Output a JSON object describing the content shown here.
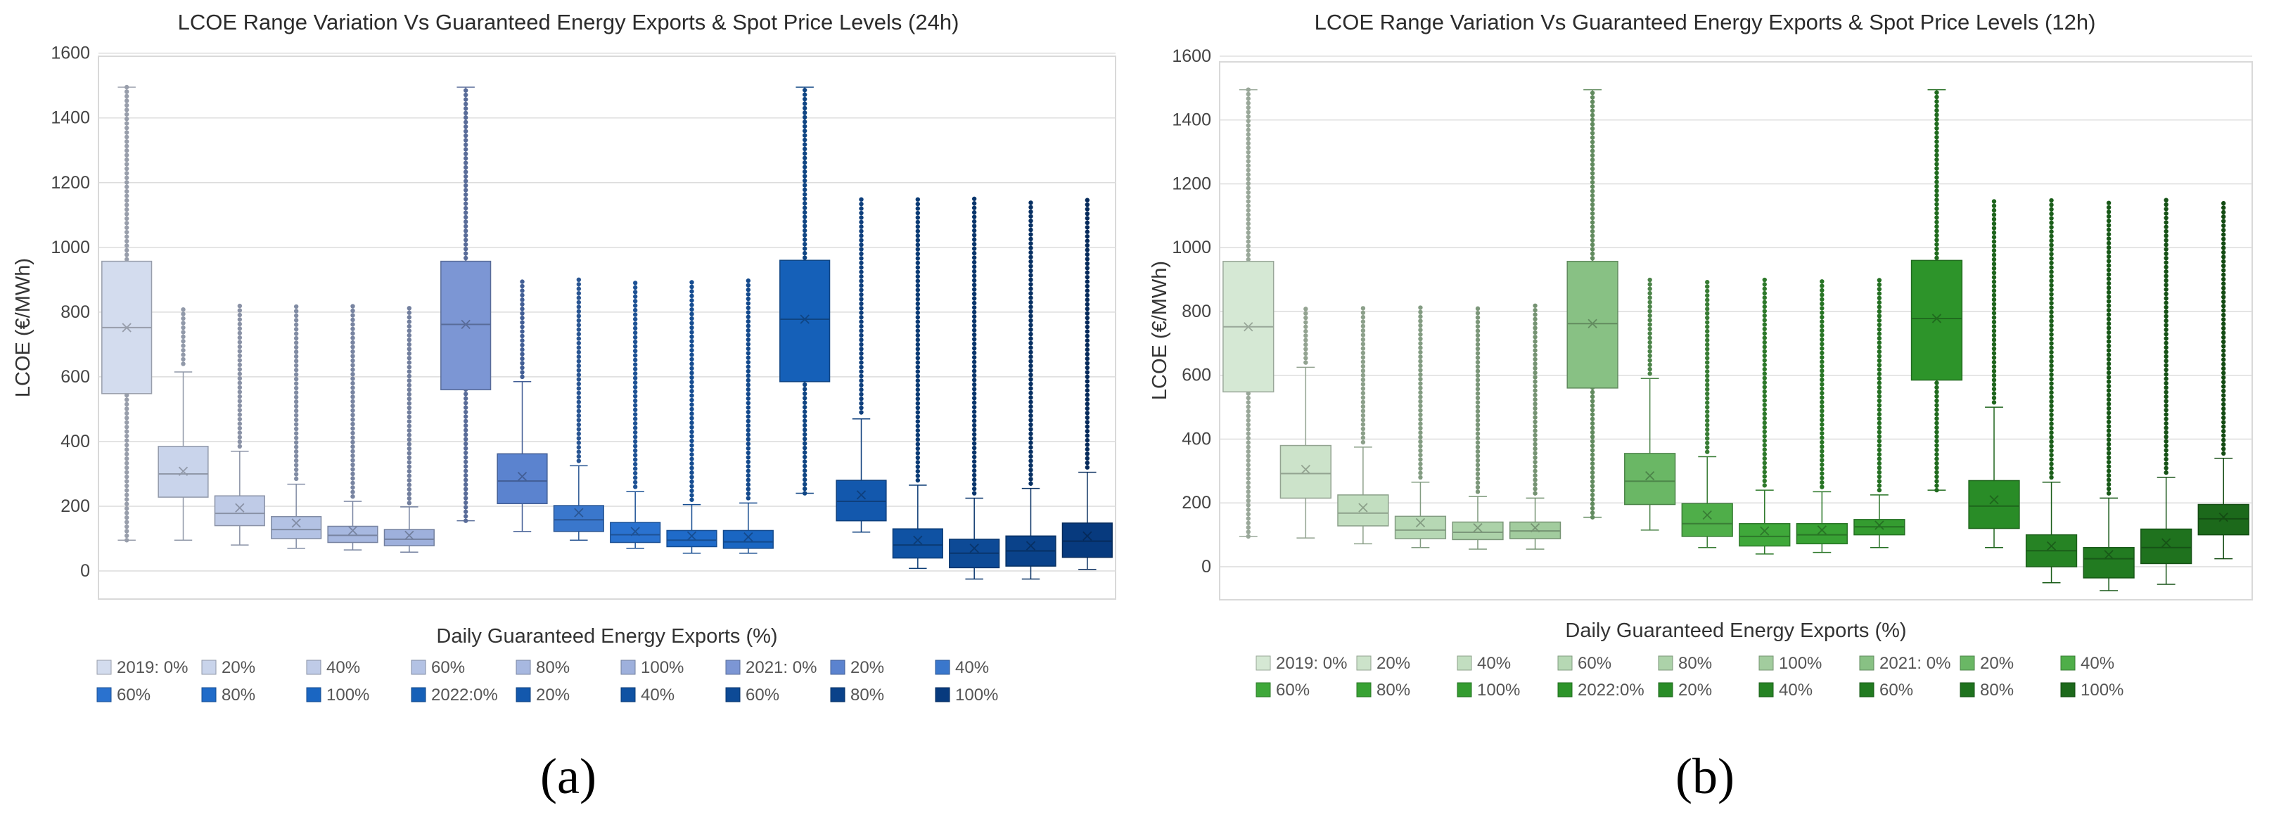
{
  "chart_data": [
    {
      "type": "box",
      "panel": "a",
      "caption": "(a)",
      "title": "LCOE Range Variation Vs Guaranteed Energy Exports & Spot Price Levels (24h)",
      "xlabel": "Daily Guaranteed Energy Exports (%)",
      "ylabel": "LCOE (€/MWh)",
      "ylim": [
        -100,
        1600
      ],
      "yticks": [
        0,
        200,
        400,
        600,
        800,
        1000,
        1200,
        1400,
        1600
      ],
      "grid": true,
      "legend_position": "bottom",
      "legend_rows": [
        9,
        9
      ],
      "series": [
        {
          "name": "2019: 0%",
          "color": "#d3dcee",
          "q1": 548,
          "median": 752,
          "q3": 957,
          "mean": 752,
          "lo": 95,
          "hi": 1495,
          "whisk_lo": 95,
          "whisk_hi": 1495,
          "out_lo": 95,
          "out_hi": 1495
        },
        {
          "name": "20%",
          "color": "#c9d4eb",
          "q1": 228,
          "median": 300,
          "q3": 385,
          "mean": 308,
          "lo": 95,
          "hi": 615,
          "whisk_lo": 95,
          "whisk_hi": 615,
          "out_lo": 640,
          "out_hi": 820
        },
        {
          "name": "40%",
          "color": "#bfcbe7",
          "q1": 140,
          "median": 178,
          "q3": 232,
          "mean": 195,
          "lo": 80,
          "hi": 370,
          "whisk_lo": 80,
          "whisk_hi": 370,
          "out_lo": 385,
          "out_hi": 820
        },
        {
          "name": "60%",
          "color": "#b3c2e4",
          "q1": 100,
          "median": 128,
          "q3": 168,
          "mean": 148,
          "lo": 70,
          "hi": 268,
          "whisk_lo": 70,
          "whisk_hi": 268,
          "out_lo": 285,
          "out_hi": 820
        },
        {
          "name": "80%",
          "color": "#a7b8e0",
          "q1": 88,
          "median": 110,
          "q3": 138,
          "mean": 125,
          "lo": 65,
          "hi": 215,
          "whisk_lo": 65,
          "whisk_hi": 215,
          "out_lo": 230,
          "out_hi": 820
        },
        {
          "name": "100%",
          "color": "#9eb0dc",
          "q1": 78,
          "median": 98,
          "q3": 128,
          "mean": 110,
          "lo": 58,
          "hi": 198,
          "whisk_lo": 58,
          "whisk_hi": 198,
          "out_lo": 210,
          "out_hi": 820
        },
        {
          "name": "2021: 0%",
          "color": "#7c96d4",
          "q1": 560,
          "median": 762,
          "q3": 957,
          "mean": 762,
          "lo": 155,
          "hi": 1495,
          "whisk_lo": 155,
          "whisk_hi": 1495,
          "out_lo": 155,
          "out_hi": 1495
        },
        {
          "name": "20%",
          "color": "#5b83cf",
          "q1": 208,
          "median": 278,
          "q3": 362,
          "mean": 292,
          "lo": 122,
          "hi": 585,
          "whisk_lo": 122,
          "whisk_hi": 585,
          "out_lo": 600,
          "out_hi": 900
        },
        {
          "name": "40%",
          "color": "#3a77cc",
          "q1": 122,
          "median": 158,
          "q3": 202,
          "mean": 180,
          "lo": 95,
          "hi": 325,
          "whisk_lo": 95,
          "whisk_hi": 325,
          "out_lo": 340,
          "out_hi": 900
        },
        {
          "name": "60%",
          "color": "#2a72cf",
          "q1": 88,
          "median": 112,
          "q3": 150,
          "mean": 122,
          "lo": 70,
          "hi": 245,
          "whisk_lo": 70,
          "whisk_hi": 245,
          "out_lo": 260,
          "out_hi": 900
        },
        {
          "name": "80%",
          "color": "#1f6bc9",
          "q1": 75,
          "median": 95,
          "q3": 125,
          "mean": 108,
          "lo": 55,
          "hi": 205,
          "whisk_lo": 55,
          "whisk_hi": 205,
          "out_lo": 220,
          "out_hi": 900
        },
        {
          "name": "100%",
          "color": "#1a66c2",
          "q1": 70,
          "median": 90,
          "q3": 125,
          "mean": 105,
          "lo": 55,
          "hi": 210,
          "whisk_lo": 55,
          "whisk_hi": 210,
          "out_lo": 225,
          "out_hi": 900
        },
        {
          "name": "2022:0%",
          "color": "#1560b8",
          "q1": 585,
          "median": 778,
          "q3": 960,
          "mean": 778,
          "lo": 240,
          "hi": 1495,
          "whisk_lo": 240,
          "whisk_hi": 1495,
          "out_lo": 240,
          "out_hi": 1495
        },
        {
          "name": "20%",
          "color": "#1358ad",
          "q1": 155,
          "median": 215,
          "q3": 280,
          "mean": 235,
          "lo": 120,
          "hi": 470,
          "whisk_lo": 120,
          "whisk_hi": 470,
          "out_lo": 490,
          "out_hi": 1150
        },
        {
          "name": "40%",
          "color": "#0f52a3",
          "q1": 40,
          "median": 80,
          "q3": 130,
          "mean": 95,
          "lo": 8,
          "hi": 265,
          "whisk_lo": 8,
          "whisk_hi": 265,
          "out_lo": 280,
          "out_hi": 1150
        },
        {
          "name": "60%",
          "color": "#0d4a96",
          "q1": 10,
          "median": 55,
          "q3": 98,
          "mean": 70,
          "lo": -25,
          "hi": 225,
          "whisk_lo": -25,
          "whisk_hi": 225,
          "out_lo": 240,
          "out_hi": 1150
        },
        {
          "name": "80%",
          "color": "#0a428a",
          "q1": 15,
          "median": 62,
          "q3": 108,
          "mean": 78,
          "lo": -25,
          "hi": 255,
          "whisk_lo": -25,
          "whisk_hi": 255,
          "out_lo": 270,
          "out_hi": 1150
        },
        {
          "name": "100%",
          "color": "#073a7e",
          "q1": 42,
          "median": 92,
          "q3": 148,
          "mean": 108,
          "lo": 5,
          "hi": 305,
          "whisk_lo": 5,
          "whisk_hi": 305,
          "out_lo": 320,
          "out_hi": 1150
        }
      ]
    },
    {
      "type": "box",
      "panel": "b",
      "caption": "(b)",
      "title": "LCOE Range Variation Vs Guaranteed Energy Exports & Spot Price Levels (12h)",
      "xlabel": "Daily Guaranteed Energy Exports (%)",
      "ylabel": "LCOE (€/MWh)",
      "ylim": [
        -100,
        1600
      ],
      "yticks": [
        0,
        200,
        400,
        600,
        800,
        1000,
        1200,
        1400,
        1600
      ],
      "grid": true,
      "legend_position": "bottom",
      "legend_rows": [
        9,
        9
      ],
      "series": [
        {
          "name": "2019: 0%",
          "color": "#d5e8d4",
          "q1": 548,
          "median": 752,
          "q3": 957,
          "mean": 752,
          "lo": 95,
          "hi": 1495,
          "whisk_lo": 95,
          "whisk_hi": 1495,
          "out_lo": 95,
          "out_hi": 1495
        },
        {
          "name": "20%",
          "color": "#cce3ca",
          "q1": 215,
          "median": 292,
          "q3": 380,
          "mean": 305,
          "lo": 90,
          "hi": 625,
          "whisk_lo": 90,
          "whisk_hi": 625,
          "out_lo": 640,
          "out_hi": 820
        },
        {
          "name": "40%",
          "color": "#c2dec0",
          "q1": 128,
          "median": 168,
          "q3": 225,
          "mean": 185,
          "lo": 72,
          "hi": 375,
          "whisk_lo": 72,
          "whisk_hi": 375,
          "out_lo": 390,
          "out_hi": 820
        },
        {
          "name": "60%",
          "color": "#b6d8b4",
          "q1": 88,
          "median": 115,
          "q3": 158,
          "mean": 138,
          "lo": 60,
          "hi": 265,
          "whisk_lo": 60,
          "whisk_hi": 265,
          "out_lo": 280,
          "out_hi": 820
        },
        {
          "name": "80%",
          "color": "#acd2a9",
          "q1": 85,
          "median": 108,
          "q3": 140,
          "mean": 122,
          "lo": 55,
          "hi": 220,
          "whisk_lo": 55,
          "whisk_hi": 220,
          "out_lo": 235,
          "out_hi": 820
        },
        {
          "name": "100%",
          "color": "#a2cc9e",
          "q1": 88,
          "median": 112,
          "q3": 140,
          "mean": 122,
          "lo": 55,
          "hi": 215,
          "whisk_lo": 55,
          "whisk_hi": 215,
          "out_lo": 230,
          "out_hi": 820
        },
        {
          "name": "2021: 0%",
          "color": "#88c184",
          "q1": 560,
          "median": 762,
          "q3": 957,
          "mean": 762,
          "lo": 155,
          "hi": 1495,
          "whisk_lo": 155,
          "whisk_hi": 1495,
          "out_lo": 155,
          "out_hi": 1495
        },
        {
          "name": "20%",
          "color": "#6ab765",
          "q1": 195,
          "median": 268,
          "q3": 355,
          "mean": 285,
          "lo": 115,
          "hi": 590,
          "whisk_lo": 115,
          "whisk_hi": 590,
          "out_lo": 605,
          "out_hi": 900
        },
        {
          "name": "40%",
          "color": "#4fae49",
          "q1": 95,
          "median": 135,
          "q3": 198,
          "mean": 162,
          "lo": 60,
          "hi": 345,
          "whisk_lo": 60,
          "whisk_hi": 345,
          "out_lo": 360,
          "out_hi": 900
        },
        {
          "name": "60%",
          "color": "#3fa83a",
          "q1": 65,
          "median": 95,
          "q3": 135,
          "mean": 112,
          "lo": 40,
          "hi": 240,
          "whisk_lo": 40,
          "whisk_hi": 240,
          "out_lo": 255,
          "out_hi": 900
        },
        {
          "name": "80%",
          "color": "#38a234",
          "q1": 72,
          "median": 100,
          "q3": 135,
          "mean": 115,
          "lo": 45,
          "hi": 235,
          "whisk_lo": 45,
          "whisk_hi": 235,
          "out_lo": 250,
          "out_hi": 900
        },
        {
          "name": "100%",
          "color": "#349c30",
          "q1": 100,
          "median": 125,
          "q3": 148,
          "mean": 130,
          "lo": 60,
          "hi": 225,
          "whisk_lo": 60,
          "whisk_hi": 225,
          "out_lo": 240,
          "out_hi": 900
        },
        {
          "name": "2022:0%",
          "color": "#2d942a",
          "q1": 585,
          "median": 778,
          "q3": 960,
          "mean": 778,
          "lo": 240,
          "hi": 1495,
          "whisk_lo": 240,
          "whisk_hi": 1495,
          "out_lo": 240,
          "out_hi": 1495
        },
        {
          "name": "20%",
          "color": "#298c27",
          "q1": 120,
          "median": 190,
          "q3": 270,
          "mean": 210,
          "lo": 60,
          "hi": 500,
          "whisk_lo": 60,
          "whisk_hi": 500,
          "out_lo": 515,
          "out_hi": 1150
        },
        {
          "name": "40%",
          "color": "#268324",
          "q1": 0,
          "median": 50,
          "q3": 100,
          "mean": 65,
          "lo": -50,
          "hi": 265,
          "whisk_lo": -50,
          "whisk_hi": 265,
          "out_lo": 280,
          "out_hi": 1150
        },
        {
          "name": "60%",
          "color": "#227b21",
          "q1": -35,
          "median": 25,
          "q3": 60,
          "mean": 38,
          "lo": -75,
          "hi": 215,
          "whisk_lo": -75,
          "whisk_hi": 215,
          "out_lo": 230,
          "out_hi": 1150
        },
        {
          "name": "80%",
          "color": "#1f721e",
          "q1": 10,
          "median": 60,
          "q3": 118,
          "mean": 75,
          "lo": -55,
          "hi": 280,
          "whisk_lo": -55,
          "whisk_hi": 280,
          "out_lo": 295,
          "out_hi": 1150
        },
        {
          "name": "100%",
          "color": "#1c691b",
          "q1": 100,
          "median": 150,
          "q3": 195,
          "mean": 155,
          "lo": 25,
          "hi": 340,
          "whisk_lo": 25,
          "whisk_hi": 340,
          "out_lo": 355,
          "out_hi": 1150
        }
      ]
    }
  ]
}
